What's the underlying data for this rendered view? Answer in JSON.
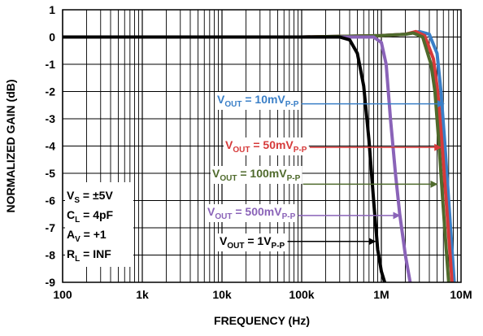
{
  "chart_data": {
    "type": "line",
    "title": "",
    "xlabel": "FREQUENCY (Hz)",
    "ylabel": "NORMALIZED GAIN (dB)",
    "x_scale": "log",
    "xlim": [
      100,
      10000000
    ],
    "ylim": [
      -9,
      1
    ],
    "grid": true,
    "x_ticks": [
      {
        "value": 100,
        "label": "100"
      },
      {
        "value": 1000,
        "label": "1k"
      },
      {
        "value": 10000,
        "label": "10k"
      },
      {
        "value": 100000,
        "label": "100k"
      },
      {
        "value": 1000000,
        "label": "1M"
      },
      {
        "value": 10000000,
        "label": "10M"
      }
    ],
    "y_ticks": [
      {
        "value": 1,
        "label": "1"
      },
      {
        "value": 0,
        "label": "0"
      },
      {
        "value": -1,
        "label": "-1"
      },
      {
        "value": -2,
        "label": "-2"
      },
      {
        "value": -3,
        "label": "-3"
      },
      {
        "value": -4,
        "label": "-4"
      },
      {
        "value": -5,
        "label": "-5"
      },
      {
        "value": -6,
        "label": "-6"
      },
      {
        "value": -7,
        "label": "-7"
      },
      {
        "value": -8,
        "label": "-8"
      },
      {
        "value": -9,
        "label": "-9"
      }
    ],
    "conditions": [
      {
        "main": "V",
        "sub": "S",
        "rest": " = ±5V"
      },
      {
        "main": "C",
        "sub": "L",
        "rest": " = 4pF"
      },
      {
        "main": "A",
        "sub": "V",
        "rest": " = +1"
      },
      {
        "main": "R",
        "sub": "L",
        "rest": " = INF"
      }
    ],
    "series": [
      {
        "color": "#3a7fc7",
        "label": {
          "main": "V",
          "sub1": "OUT",
          "mid": " = 10mV",
          "sub2": "P-P"
        },
        "arrow_to": [
          6100000,
          -2.45
        ],
        "points": [
          [
            100,
            0
          ],
          [
            1000,
            0
          ],
          [
            10000,
            0
          ],
          [
            100000,
            0
          ],
          [
            1000000,
            0.05
          ],
          [
            2000000,
            0.1
          ],
          [
            3000000,
            0.2
          ],
          [
            4000000,
            0.1
          ],
          [
            5000000,
            -0.6
          ],
          [
            5600000,
            -2
          ],
          [
            6300000,
            -4
          ],
          [
            7000000,
            -6
          ],
          [
            7800000,
            -8
          ],
          [
            8200000,
            -9
          ]
        ]
      },
      {
        "color": "#d63a3a",
        "label": {
          "main": "V",
          "sub1": "OUT",
          "mid": " = 50mV",
          "sub2": "P-P"
        },
        "arrow_to": [
          5600000,
          -4.05
        ],
        "points": [
          [
            100,
            0
          ],
          [
            1000,
            0
          ],
          [
            10000,
            0
          ],
          [
            100000,
            0
          ],
          [
            1000000,
            0.05
          ],
          [
            2000000,
            0.1
          ],
          [
            2700000,
            0.2
          ],
          [
            3500000,
            0.05
          ],
          [
            4500000,
            -0.8
          ],
          [
            5100000,
            -2
          ],
          [
            5800000,
            -4
          ],
          [
            6500000,
            -6
          ],
          [
            7300000,
            -8
          ],
          [
            7700000,
            -9
          ]
        ]
      },
      {
        "color": "#4f6a2c",
        "label": {
          "main": "V",
          "sub1": "OUT",
          "mid": " = 100mV",
          "sub2": "P-P"
        },
        "arrow_to": [
          5000000,
          -5.4
        ],
        "points": [
          [
            100,
            0
          ],
          [
            1000,
            0
          ],
          [
            10000,
            0
          ],
          [
            100000,
            0
          ],
          [
            1000000,
            0.05
          ],
          [
            2000000,
            0.1
          ],
          [
            2500000,
            0.15
          ],
          [
            3300000,
            0
          ],
          [
            4200000,
            -1
          ],
          [
            4700000,
            -2
          ],
          [
            5300000,
            -4
          ],
          [
            5900000,
            -6
          ],
          [
            6600000,
            -8
          ],
          [
            7000000,
            -9
          ]
        ]
      },
      {
        "color": "#8a63b8",
        "label": {
          "main": "V",
          "sub1": "OUT",
          "mid": " = 500mV",
          "sub2": "P-P"
        },
        "arrow_to": [
          1700000,
          -6.55
        ],
        "points": [
          [
            100,
            0
          ],
          [
            1000,
            0
          ],
          [
            10000,
            0
          ],
          [
            100000,
            0
          ],
          [
            500000,
            0
          ],
          [
            800000,
            0
          ],
          [
            1000000,
            -0.2
          ],
          [
            1150000,
            -1
          ],
          [
            1300000,
            -3
          ],
          [
            1500000,
            -5
          ],
          [
            1700000,
            -6.5
          ],
          [
            2000000,
            -8
          ],
          [
            2300000,
            -9
          ]
        ]
      },
      {
        "color": "#000000",
        "label": {
          "main": "V",
          "sub1": "OUT",
          "mid": " = 1V",
          "sub2": "P-P"
        },
        "arrow_to": [
          840000,
          -7.5
        ],
        "points": [
          [
            100,
            0
          ],
          [
            1000,
            0
          ],
          [
            10000,
            0
          ],
          [
            100000,
            0
          ],
          [
            300000,
            0
          ],
          [
            400000,
            -0.1
          ],
          [
            500000,
            -0.6
          ],
          [
            600000,
            -1.8
          ],
          [
            700000,
            -3.8
          ],
          [
            800000,
            -6
          ],
          [
            900000,
            -7.8
          ],
          [
            1000000,
            -8.6
          ],
          [
            1100000,
            -9
          ]
        ]
      }
    ]
  }
}
